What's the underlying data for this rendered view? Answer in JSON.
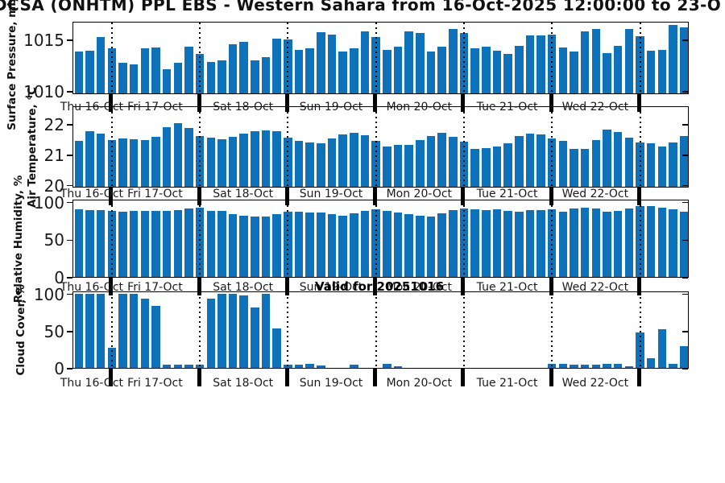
{
  "title": "DCSA (ONHTM) PPL EBS  - Western Sahara from 16-Oct-2025 12:00:00 to 23-O",
  "valid_for": "Valid for 20251016",
  "bar_color": "#0d72ba",
  "grid_color": "#000000",
  "day_labels": [
    "Thu 16-Oct",
    "Fri 17-Oct",
    "Sat 18-Oct",
    "Sun 19-Oct",
    "Mon 20-Oct",
    "Tue 21-Oct",
    "Wed 22-Oct"
  ],
  "chart_data": [
    {
      "type": "bar",
      "ylabel": "Surface Pressure, mbar",
      "yticks": [
        1010,
        1015
      ],
      "ylim": [
        1009.75,
        1016.8
      ],
      "grid": "vertical-dotted-day-boundaries",
      "legend": "none",
      "values": [
        1013.8,
        1013.9,
        1015.2,
        1014.1,
        1012.7,
        1012.6,
        1014.1,
        1014.2,
        1012.1,
        1012.7,
        1014.3,
        1013.6,
        1012.8,
        1013.0,
        1014.5,
        1014.8,
        1013.0,
        1013.3,
        1015.1,
        1015.0,
        1014.0,
        1014.1,
        1015.7,
        1015.5,
        1013.8,
        1014.1,
        1015.8,
        1015.2,
        1014.0,
        1014.3,
        1015.8,
        1015.6,
        1013.8,
        1014.3,
        1016.0,
        1015.6,
        1014.1,
        1014.3,
        1013.9,
        1013.6,
        1014.4,
        1015.4,
        1015.4,
        1015.5,
        1014.2,
        1013.8,
        1015.8,
        1016.0,
        1013.7,
        1014.4,
        1016.0,
        1015.3,
        1013.9,
        1014.0,
        1016.4,
        1016.2
      ]
    },
    {
      "type": "bar",
      "ylabel": "Air Temperature, °C",
      "yticks": [
        20,
        21,
        22
      ],
      "ylim": [
        19.94,
        22.6
      ],
      "grid": "vertical-dotted-day-boundaries",
      "legend": "none",
      "values": [
        21.45,
        21.75,
        21.67,
        21.47,
        21.52,
        21.5,
        21.47,
        21.57,
        21.88,
        22.02,
        21.85,
        21.6,
        21.55,
        21.5,
        21.57,
        21.67,
        21.75,
        21.78,
        21.75,
        21.55,
        21.45,
        21.4,
        21.37,
        21.52,
        21.65,
        21.7,
        21.62,
        21.43,
        21.27,
        21.3,
        21.32,
        21.47,
        21.6,
        21.71,
        21.58,
        21.41,
        21.18,
        21.21,
        21.25,
        21.36,
        21.59,
        21.69,
        21.65,
        21.52,
        21.45,
        21.17,
        21.17,
        21.47,
        21.8,
        21.74,
        21.56,
        21.39,
        21.35,
        21.26,
        21.39,
        21.59
      ]
    },
    {
      "type": "bar",
      "ylabel": "Relative Humidity, %",
      "yticks": [
        0,
        50,
        100
      ],
      "ylim": [
        0,
        104
      ],
      "grid": "vertical-dotted-day-boundaries",
      "legend": "none",
      "values": [
        90,
        89,
        89,
        88,
        87,
        88,
        88,
        88,
        88,
        89,
        91,
        92,
        88,
        88,
        84,
        82,
        80,
        80,
        84,
        87,
        87,
        86,
        86,
        84,
        82,
        85,
        88,
        90,
        88,
        86,
        84,
        81,
        80,
        85,
        89,
        91,
        90,
        89,
        90,
        88,
        87,
        89,
        89,
        90,
        87,
        91,
        92,
        91,
        87,
        88,
        91,
        94,
        94,
        92,
        90,
        87
      ]
    },
    {
      "type": "bar",
      "ylabel": "Cloud Cover, %",
      "yticks": [
        0,
        50,
        100
      ],
      "ylim": [
        0,
        104
      ],
      "grid": "vertical-dotted-day-boundaries",
      "legend": "none",
      "values": [
        100,
        100,
        100,
        27,
        100,
        100,
        93,
        83,
        4,
        4,
        4,
        4,
        93,
        100,
        100,
        98,
        81,
        100,
        53,
        4,
        4,
        5,
        3,
        0,
        0,
        4,
        0,
        0,
        5,
        2,
        0,
        0,
        0,
        0,
        0,
        0,
        0,
        0,
        0,
        0,
        0,
        0,
        0,
        5,
        5,
        4,
        4,
        4,
        5,
        5,
        2,
        48,
        13,
        52,
        5,
        29
      ]
    }
  ],
  "x_axis": {
    "bars_total": 56,
    "bars_per_day": 8,
    "first_partial_day_bars": 3,
    "last_partial_day_bars": 5
  }
}
